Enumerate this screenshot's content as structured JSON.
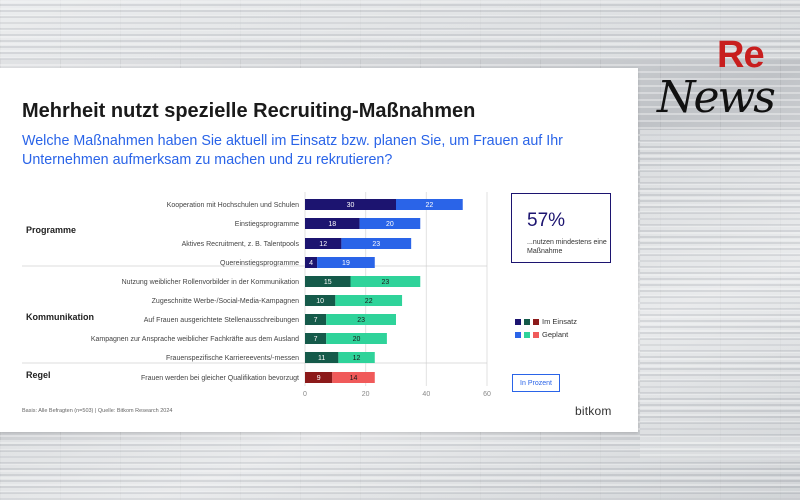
{
  "chart_data": {
    "type": "bar",
    "stacked": true,
    "orientation": "horizontal",
    "title": "Mehrheit nutzt spezielle Recruiting-Maßnahmen",
    "subtitle": "Welche Maßnahmen haben Sie aktuell im Einsatz bzw. planen Sie, um Frauen auf Ihr Unternehmen aufmerksam zu machen und zu rekrutieren?",
    "xlim": [
      0,
      60
    ],
    "xticks": [
      "0",
      "20",
      "40",
      "60"
    ],
    "groups": [
      {
        "label": "Programme",
        "colors": {
          "Im Einsatz": "#1c1470",
          "Geplant": "#2a64e8"
        },
        "items": [
          {
            "label": "Kooperation mit Hochschulen und Schulen",
            "im_einsatz": 30,
            "geplant": 22
          },
          {
            "label": "Einstiegsprogramme",
            "im_einsatz": 18,
            "geplant": 20
          },
          {
            "label": "Aktives Recruitment, z. B. Talentpools",
            "im_einsatz": 12,
            "geplant": 23
          },
          {
            "label": "Quereinstiegsprogramme",
            "im_einsatz": 4,
            "geplant": 19
          }
        ]
      },
      {
        "label": "Kommunikation",
        "colors": {
          "Im Einsatz": "#155a4a",
          "Geplant": "#2fd39a"
        },
        "items": [
          {
            "label": "Nutzung weiblicher Rollenvorbilder in der Kommunikation",
            "im_einsatz": 15,
            "geplant": 23
          },
          {
            "label": "Zugeschnitte Werbe-/Social-Media-Kampagnen",
            "im_einsatz": 10,
            "geplant": 22
          },
          {
            "label": "Auf Frauen ausgerichtete Stellenausschreibungen",
            "im_einsatz": 7,
            "geplant": 23
          },
          {
            "label": "Kampagnen zur Ansprache weiblicher Fachkräfte aus dem Ausland",
            "im_einsatz": 7,
            "geplant": 20
          },
          {
            "label": "Frauenspezifische Karriereevents/-messen",
            "im_einsatz": 11,
            "geplant": 12
          }
        ]
      },
      {
        "label": "Regel",
        "colors": {
          "Im Einsatz": "#8c1a1a",
          "Geplant": "#f05a5a"
        },
        "items": [
          {
            "label": "Frauen werden bei gleicher Qualifikation bevorzugt",
            "im_einsatz": 9,
            "geplant": 14
          }
        ]
      }
    ],
    "legend": [
      {
        "name": "Im Einsatz",
        "colors": [
          "#1c1470",
          "#155a4a",
          "#8c1a1a"
        ]
      },
      {
        "name": "Geplant",
        "colors": [
          "#2a64e8",
          "#2fd39a",
          "#f05a5a"
        ]
      }
    ]
  },
  "callout": {
    "value": "57%",
    "text": "...nutzen mindestens eine Maßnahme"
  },
  "unit": "In Prozent",
  "footnote": "Basis: Alle Befragten (n=503) | Quelle: Bitkom Research 2024",
  "brand": "bitkom",
  "logo": {
    "re": "Re",
    "news": "News"
  }
}
